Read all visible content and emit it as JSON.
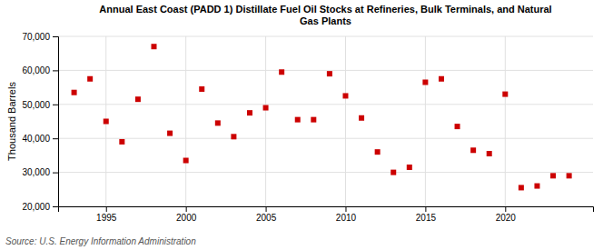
{
  "chart_data": {
    "type": "scatter",
    "title": "Annual East Coast (PADD 1) Distillate Fuel Oil Stocks at Refineries, Bulk Terminals, and Natural\nGas Plants",
    "y_label": "Thousand Barrels",
    "annotations": [
      "Source: U.S. Energy Information Administration"
    ],
    "x": [
      1993,
      1994,
      1995,
      1996,
      1997,
      1998,
      1999,
      2000,
      2001,
      2002,
      2003,
      2004,
      2005,
      2006,
      2007,
      2008,
      2009,
      2010,
      2011,
      2012,
      2013,
      2014,
      2015,
      2016,
      2017,
      2018,
      2019,
      2020,
      2021,
      2022,
      2023,
      2024
    ],
    "values": [
      53500,
      57500,
      45000,
      39000,
      51500,
      67000,
      41500,
      33500,
      54500,
      44500,
      40500,
      47500,
      49000,
      59500,
      45500,
      45500,
      59000,
      52500,
      46000,
      36000,
      30000,
      31500,
      56500,
      57500,
      43500,
      36500,
      35500,
      53000,
      25500,
      26000,
      29000,
      29000
    ],
    "color": "#cc0000",
    "marker": "square",
    "xlim": [
      1992,
      2025.5
    ],
    "ylim": [
      20000,
      70000
    ],
    "xticks": [
      1995,
      2000,
      2005,
      2010,
      2015,
      2020
    ],
    "yticks": [
      {
        "value": 20000,
        "label": "20,000"
      },
      {
        "value": 30000,
        "label": "30,000"
      },
      {
        "value": 40000,
        "label": "40,000"
      },
      {
        "value": 50000,
        "label": "50,000"
      },
      {
        "value": 60000,
        "label": "60,000"
      },
      {
        "value": 70000,
        "label": "70,000"
      }
    ],
    "grid": true
  }
}
